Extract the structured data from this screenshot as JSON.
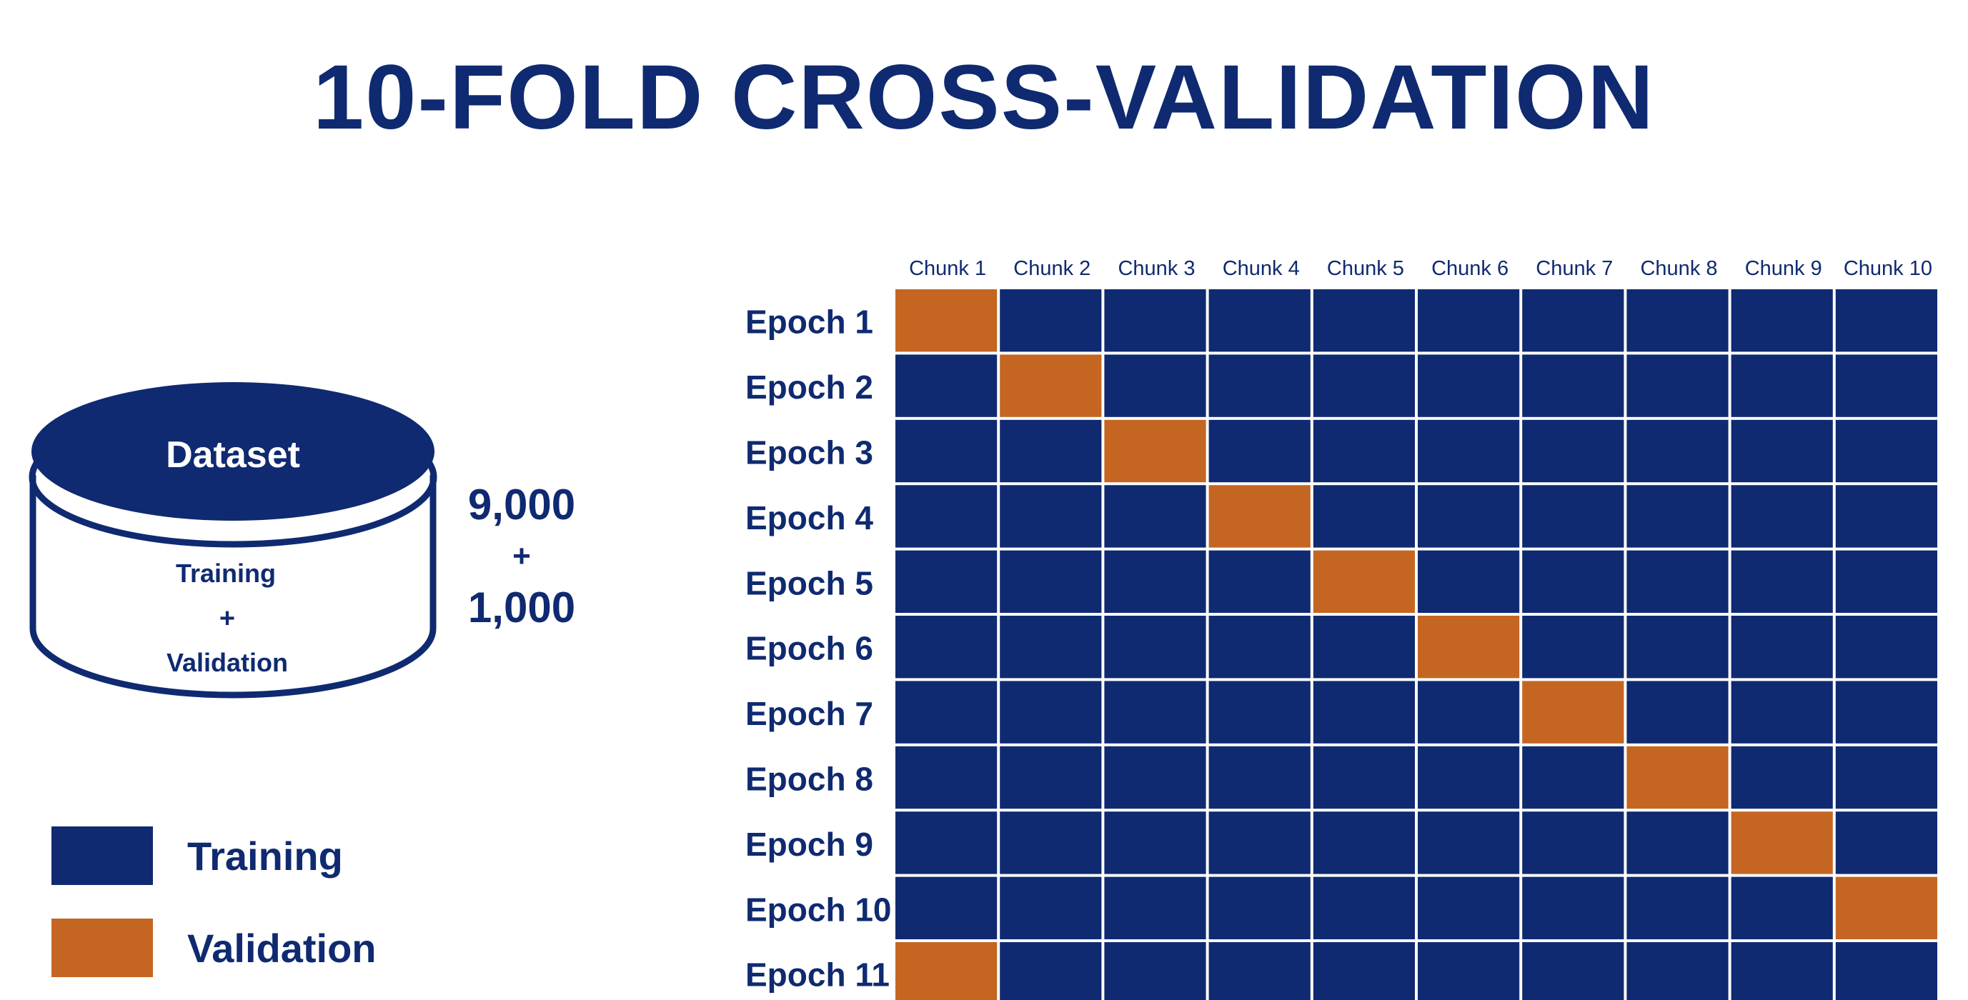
{
  "title": "10-FOLD CROSS-VALIDATION",
  "dataset": {
    "label": "Dataset",
    "line1": "Training",
    "plus": "+",
    "line2": "Validation"
  },
  "counts": {
    "training": "9,000",
    "plus": "+",
    "validation": "1,000"
  },
  "legend": [
    {
      "label": "Training",
      "color": "#0f2a70"
    },
    {
      "label": "Validation",
      "color": "#c46622"
    }
  ],
  "grid": {
    "columns": [
      "Chunk 1",
      "Chunk 2",
      "Chunk 3",
      "Chunk 4",
      "Chunk 5",
      "Chunk 6",
      "Chunk 7",
      "Chunk 8",
      "Chunk 9",
      "Chunk 10"
    ],
    "rows": [
      {
        "label": "Epoch 1",
        "validation_chunk": 1
      },
      {
        "label": "Epoch 2",
        "validation_chunk": 2
      },
      {
        "label": "Epoch 3",
        "validation_chunk": 3
      },
      {
        "label": "Epoch 4",
        "validation_chunk": 4
      },
      {
        "label": "Epoch 5",
        "validation_chunk": 5
      },
      {
        "label": "Epoch 6",
        "validation_chunk": 6
      },
      {
        "label": "Epoch 7",
        "validation_chunk": 7
      },
      {
        "label": "Epoch 8",
        "validation_chunk": 8
      },
      {
        "label": "Epoch 9",
        "validation_chunk": 9
      },
      {
        "label": "Epoch 10",
        "validation_chunk": 10
      },
      {
        "label": "Epoch 11",
        "validation_chunk": 1
      }
    ],
    "training_color": "#0f2a70",
    "validation_color": "#c46622"
  }
}
